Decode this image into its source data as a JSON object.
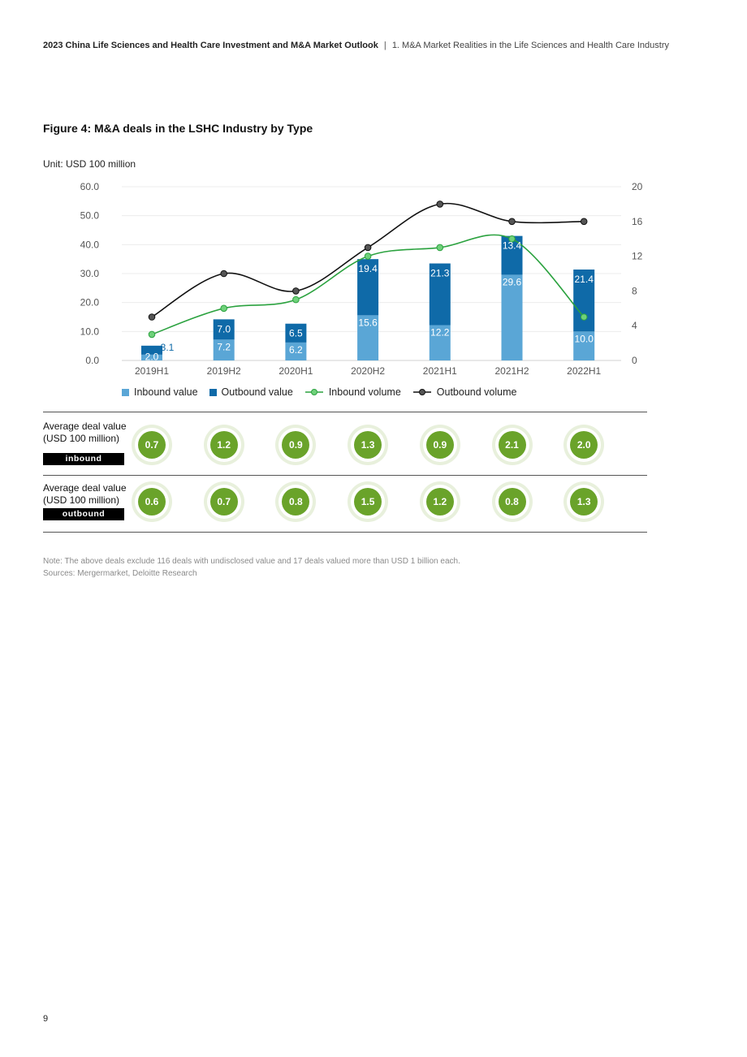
{
  "header": {
    "title": "2023 China Life Sciences and Health Care Investment and M&A Market Outlook",
    "separator": "|",
    "section": "1. M&A Market Realities in the Life Sciences and Health Care Industry"
  },
  "figure_title": "Figure 4: M&A deals in the LSHC Industry by Type",
  "unit": "Unit: USD 100 million",
  "chart_data": {
    "type": "bar",
    "stacked": true,
    "categories": [
      "2019H1",
      "2019H2",
      "2020H1",
      "2020H2",
      "2021H1",
      "2021H2",
      "2022H1"
    ],
    "series": [
      {
        "name": "Inbound value",
        "type": "bar",
        "axis": "left",
        "color": "#5aa6d6",
        "values": [
          2.0,
          7.2,
          6.2,
          15.6,
          12.2,
          29.6,
          10.0
        ]
      },
      {
        "name": "Outbound value",
        "type": "bar",
        "axis": "left",
        "color": "#0f6aa8",
        "values": [
          3.1,
          7.0,
          6.5,
          19.4,
          21.3,
          13.4,
          21.4
        ]
      },
      {
        "name": "Inbound volume",
        "type": "line",
        "axis": "right",
        "color": "#2ba23f",
        "values": [
          3,
          6,
          7,
          12,
          13,
          14,
          5
        ]
      },
      {
        "name": "Outbound volume",
        "type": "line",
        "axis": "right",
        "color": "#111111",
        "values": [
          5,
          10,
          8,
          13,
          18,
          16,
          16
        ]
      }
    ],
    "y_left": {
      "min": 0,
      "max": 60,
      "ticks": [
        "0.0",
        "10.0",
        "20.0",
        "30.0",
        "40.0",
        "50.0",
        "60.0"
      ]
    },
    "y_right": {
      "min": 0,
      "max": 20,
      "ticks": [
        "0",
        "4",
        "8",
        "12",
        "16",
        "20"
      ]
    },
    "data_labels": {
      "inbound": [
        "2.0",
        "7.2",
        "6.2",
        "15.6",
        "12.2",
        "29.6",
        "10.0"
      ],
      "outbound": [
        "3.1",
        "7.0",
        "6.5",
        "19.4",
        "21.3",
        "13.4",
        "21.4"
      ]
    },
    "grid": "horizontal",
    "legend_position": "bottom"
  },
  "legend": {
    "inbound_value": "Inbound value",
    "outbound_value": "Outbound value",
    "inbound_volume": "Inbound volume",
    "outbound_volume": "Outbound volume"
  },
  "avg_inbound": {
    "label_line1": "Average deal value",
    "label_line2": "(USD 100 million)",
    "tag": "inbound",
    "values": [
      "0.7",
      "1.2",
      "0.9",
      "1.3",
      "0.9",
      "2.1",
      "2.0"
    ]
  },
  "avg_outbound": {
    "label_line1": "Average deal value",
    "label_line2": "(USD 100 million)",
    "tag": "outbound",
    "values": [
      "0.6",
      "0.7",
      "0.8",
      "1.5",
      "1.2",
      "0.8",
      "1.3"
    ]
  },
  "note": "Note: The above deals exclude 116 deals with undisclosed value and 17 deals valued more than USD 1 billion each.",
  "sources": "Sources: Mergermarket, Deloitte Research",
  "page_number": "9",
  "colors": {
    "inbound": "#5aa6d6",
    "outbound": "#0f6aa8",
    "inbound_line": "#2ba23f",
    "outbound_line": "#111111",
    "avg_circle": "#6aa32a"
  }
}
